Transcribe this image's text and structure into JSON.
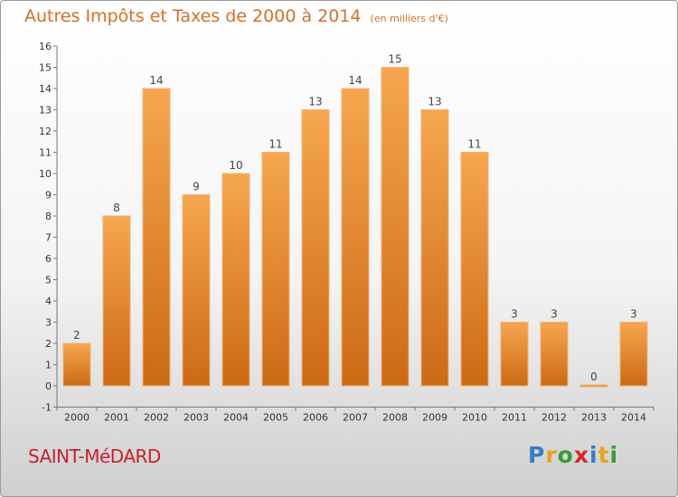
{
  "title": {
    "main": "Autres Impôts et Taxes de 2000 à 2014",
    "unit": "(en milliers d'€)"
  },
  "location": "SAINT-MéDARD",
  "logo": {
    "letters": [
      "P",
      "r",
      "o",
      "x",
      "i",
      "t",
      "i"
    ],
    "colors": [
      "#3a7cc4",
      "#e8a21c",
      "#3a9a3a",
      "#d8262c",
      "#3a7cc4",
      "#e8a21c",
      "#3a9a3a"
    ]
  },
  "colors": {
    "bar_light": "#f7a650",
    "bar_dark": "#cc6a14",
    "bar_edge": "#f0b27a"
  },
  "chart_data": {
    "type": "bar",
    "categories": [
      "2000",
      "2001",
      "2002",
      "2003",
      "2004",
      "2005",
      "2006",
      "2007",
      "2008",
      "2009",
      "2010",
      "2011",
      "2012",
      "2013",
      "2014"
    ],
    "values": [
      2,
      8,
      14,
      9,
      10,
      11,
      13,
      14,
      15,
      13,
      11,
      3,
      3,
      0,
      3
    ],
    "data_labels": [
      "2",
      "8",
      "14",
      "9",
      "10",
      "11",
      "13",
      "14",
      "15",
      "13",
      "11",
      "3",
      "3",
      "0",
      "3"
    ],
    "title": "Autres Impôts et Taxes de 2000 à 2014",
    "xlabel": "",
    "ylabel": "",
    "ylim": [
      -1,
      16
    ],
    "yticks": [
      "-1",
      "0",
      "1",
      "2",
      "3",
      "4",
      "5",
      "6",
      "7",
      "8",
      "9",
      "10",
      "11",
      "12",
      "13",
      "14",
      "15",
      "16"
    ],
    "grid": false,
    "legend": "none"
  }
}
